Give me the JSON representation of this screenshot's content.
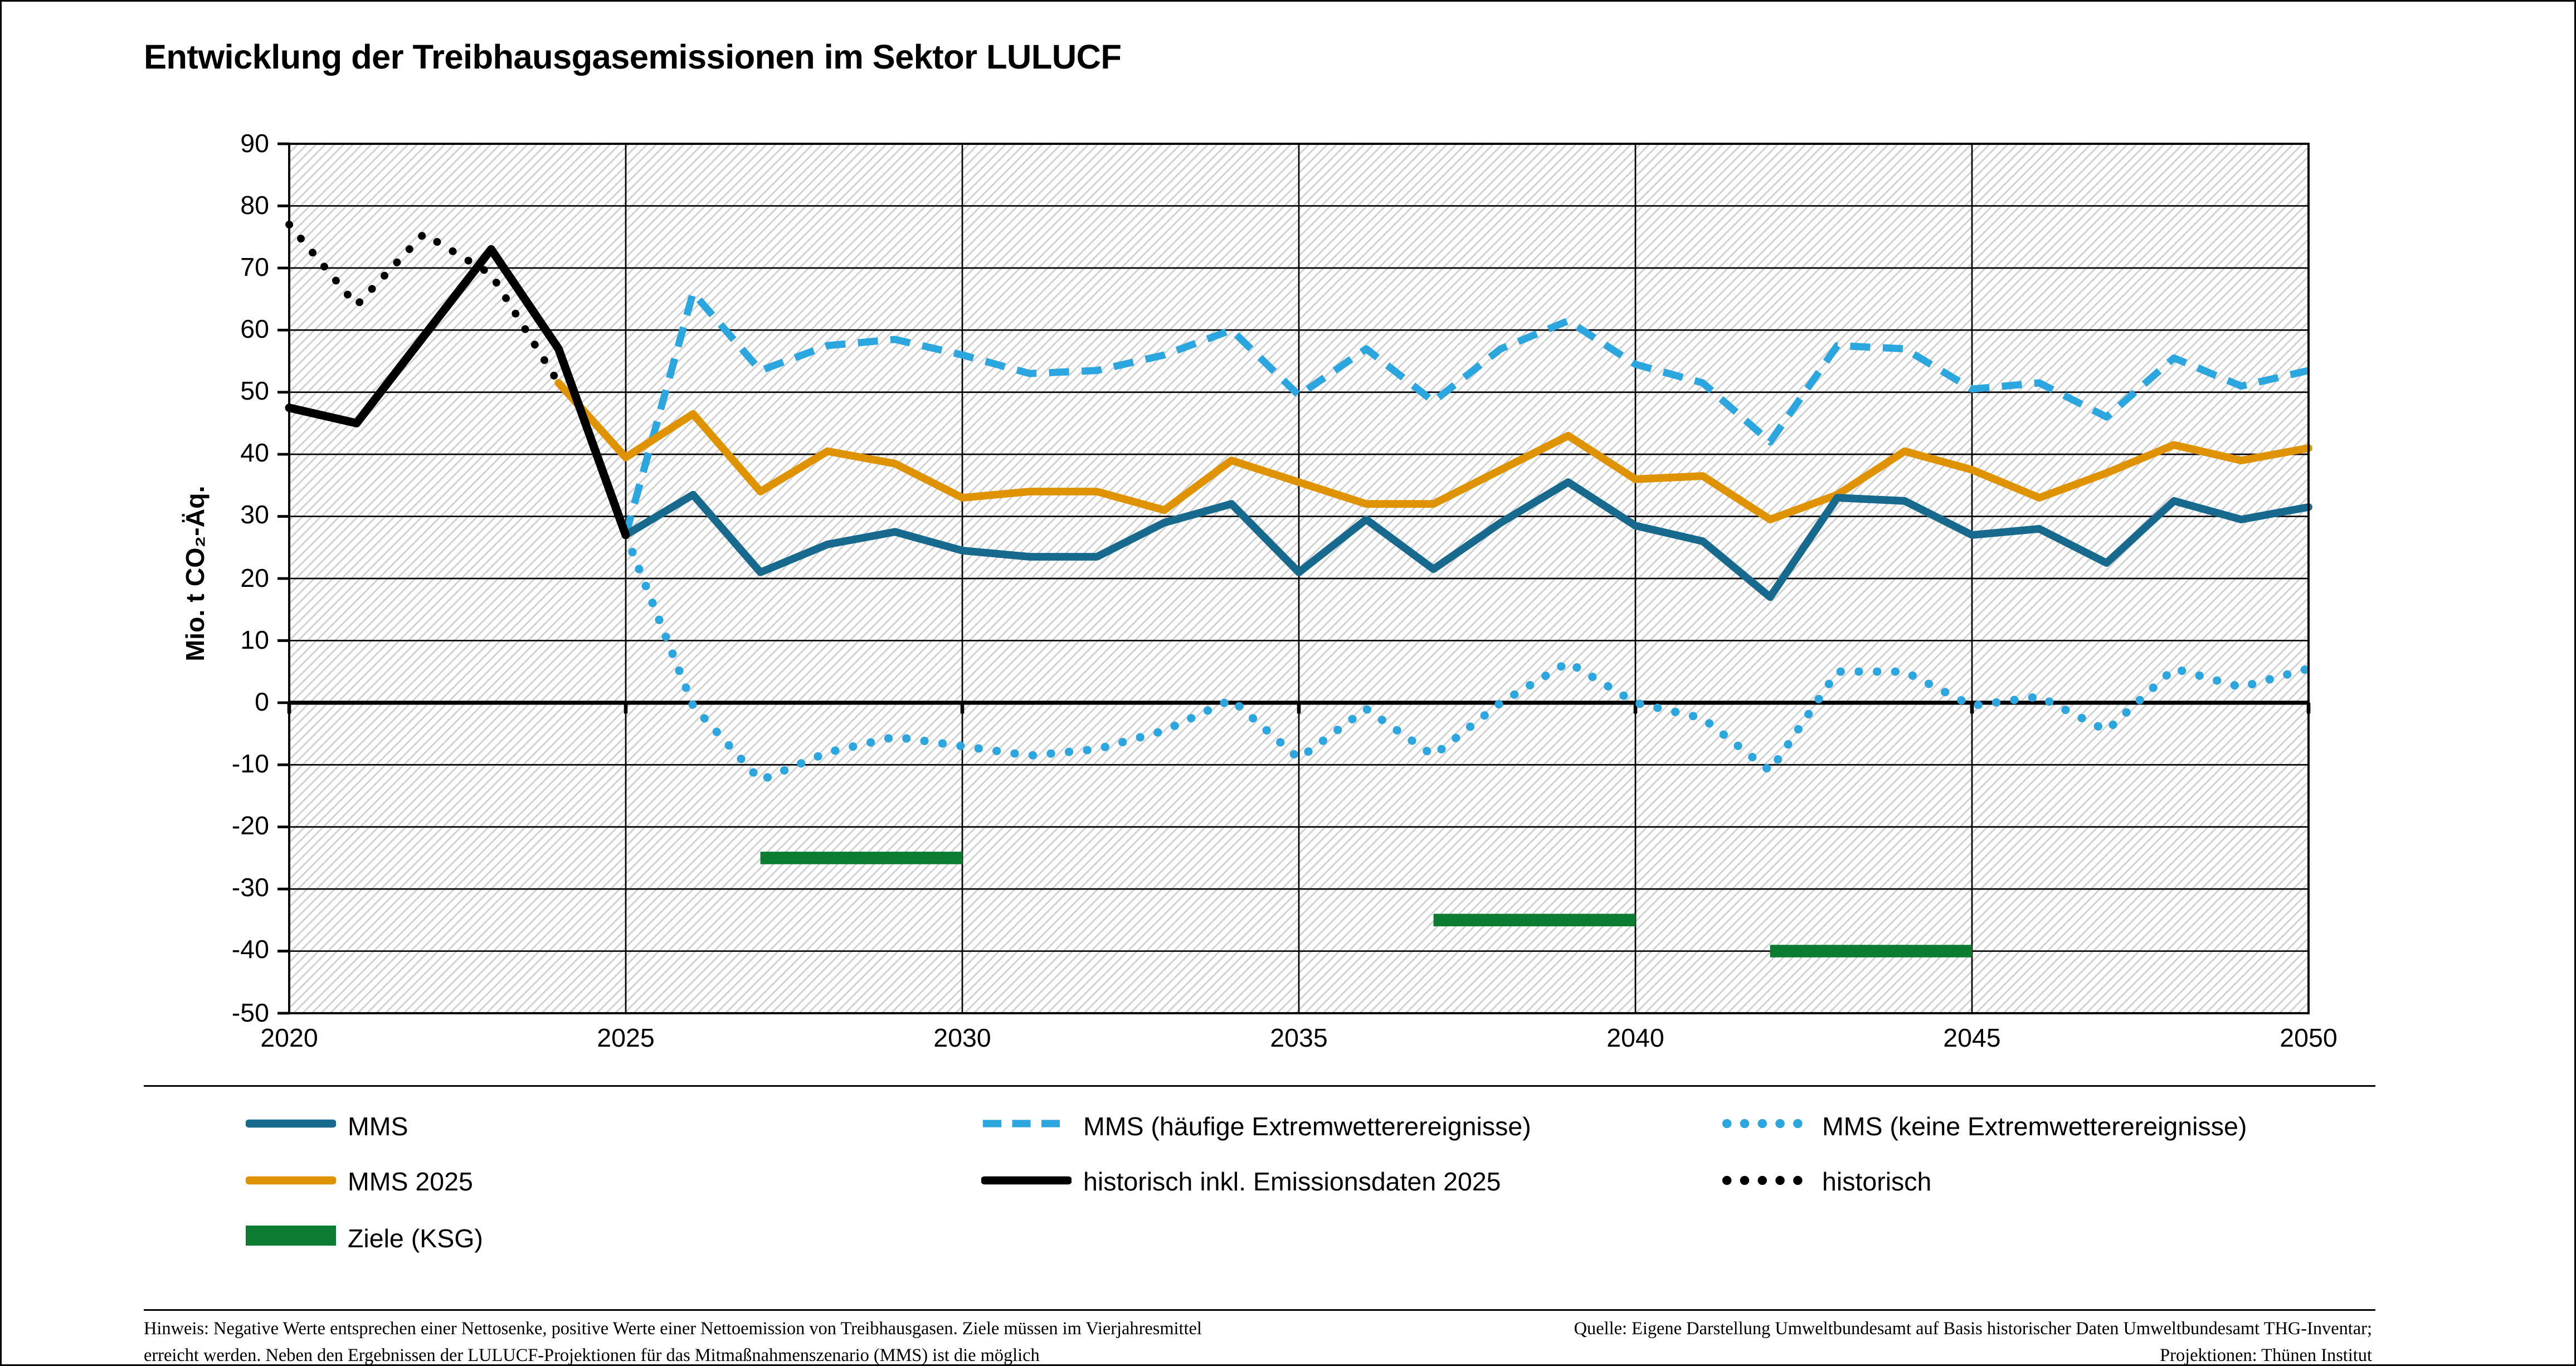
{
  "title": "Entwicklung der Treibhausgasemissionen im Sektor LULUCF",
  "colors": {
    "mms": "#176A8E",
    "mms2025": "#DF9300",
    "extremwetter_blau": "#2CA6DF",
    "historisch": "#000000",
    "ziele": "#0C7C33",
    "grid": "#000000",
    "hatch": "#D2D2D2"
  },
  "chart_data": {
    "type": "line",
    "title": "Entwicklung der Treibhausgasemissionen im Sektor LULUCF",
    "xlabel": "",
    "ylabel": "Mio. t CO₂-Äq.",
    "xlim": [
      2020,
      2050
    ],
    "ylim": [
      -50,
      90
    ],
    "xticks": [
      2020,
      2025,
      2030,
      2035,
      2040,
      2045,
      2050
    ],
    "yticks": [
      90,
      80,
      70,
      60,
      50,
      40,
      30,
      20,
      10,
      0,
      -10,
      -20,
      -30,
      -40,
      -50
    ],
    "grid": "on",
    "legend_position": "bottom",
    "series": [
      {
        "name": "MMS (keine Extremwetterereignisse)",
        "color": "#2CA6DF",
        "style": "dotted",
        "width": 5,
        "x_start": 2025,
        "values": [
          27,
          -0.5,
          -12.5,
          -8,
          -5.5,
          -7,
          -8.5,
          -7.5,
          -4.5,
          0.5,
          -9,
          -1,
          -8.5,
          0,
          6.5,
          0,
          -2.5,
          -11,
          5,
          5,
          -0.5,
          1,
          -4.5,
          5.5,
          2.5,
          5.5
        ]
      },
      {
        "name": "MMS (häufige Extremwetterereignisse)",
        "color": "#2CA6DF",
        "style": "dashed",
        "width": 4.3,
        "x_start": 2025,
        "values": [
          27,
          66,
          53.5,
          57.5,
          58.5,
          56,
          53,
          53.5,
          56,
          60,
          49.5,
          57,
          48.5,
          57,
          61.5,
          54.5,
          51.5,
          42,
          57.5,
          57,
          50.5,
          51.5,
          46,
          55.5,
          51,
          53.5
        ]
      },
      {
        "name": "MMS 2025",
        "color": "#DF9300",
        "style": "solid",
        "width": 4.6,
        "x_start": 2024,
        "values": [
          51.5,
          39.5,
          46.5,
          34,
          40.5,
          38.5,
          33,
          34,
          34,
          31,
          39,
          35.5,
          32,
          32,
          37.5,
          43,
          36,
          36.5,
          29.5,
          33.5,
          40.5,
          37.5,
          33,
          37,
          41.5,
          39,
          41
        ]
      },
      {
        "name": "MMS",
        "color": "#176A8E",
        "style": "solid",
        "width": 4.6,
        "x_start": 2025,
        "values": [
          27,
          33.5,
          21,
          25.5,
          27.5,
          24.5,
          23.5,
          23.5,
          29,
          32,
          21,
          29.5,
          21.5,
          29,
          35.5,
          28.5,
          26,
          17,
          33,
          32.5,
          27,
          28,
          22.5,
          32.5,
          29.5,
          31.5
        ]
      },
      {
        "name": "historisch",
        "color": "#000000",
        "style": "dotted",
        "width": 4.6,
        "x_start": 2020,
        "values": [
          77,
          64,
          75.5,
          69,
          51.5
        ]
      },
      {
        "name": "historisch inkl. Emissionsdaten 2025",
        "color": "#000000",
        "style": "solid",
        "width": 5,
        "x_start": 2020,
        "values": [
          47.5,
          45,
          59,
          73,
          57,
          27
        ]
      }
    ],
    "targets": [
      {
        "name": "Ziele (KSG)",
        "color": "#0C7C33",
        "from": 2027,
        "to": 2030,
        "value": -25
      },
      {
        "name": "Ziele (KSG)",
        "color": "#0C7C33",
        "from": 2037,
        "to": 2040,
        "value": -35
      },
      {
        "name": "Ziele (KSG)",
        "color": "#0C7C33",
        "from": 2042,
        "to": 2045,
        "value": -40
      }
    ]
  },
  "legend": {
    "columns": [
      {
        "items": [
          {
            "label": "MMS",
            "marker": "line",
            "color": "#176A8E"
          },
          {
            "label": "MMS 2025",
            "marker": "line",
            "color": "#DF9300"
          },
          {
            "label": "Ziele (KSG)",
            "marker": "bar",
            "color": "#0C7C33"
          }
        ]
      },
      {
        "items": [
          {
            "label": "MMS (häufige Extremwetterereignisse)",
            "marker": "dashed",
            "color": "#2CA6DF"
          },
          {
            "label": "historisch inkl. Emissionsdaten 2025",
            "marker": "line",
            "color": "#000000"
          }
        ]
      },
      {
        "items": [
          {
            "label": "MMS (keine Extremwetterereignisse)",
            "marker": "dotted",
            "color": "#2CA6DF"
          },
          {
            "label": "historisch",
            "marker": "dotted",
            "color": "#000000"
          }
        ]
      }
    ]
  },
  "footnotes": {
    "left": "Hinweis: Negative Werte entsprechen einer Nettosenke, positive Werte einer Nettoemission von Treibhausgasen. Ziele müssen im Vierjahresmittel\nerreicht werden. Neben den Ergebnissen der LULUCF-Projektionen für das Mitmaßnahmenszenario (MMS) ist die möglich",
    "right": "Quelle: Eigene Darstellung Umweltbundesamt auf Basis historischer Daten Umweltbundesamt THG-Inventar;\nProjektionen: Thünen Institut"
  }
}
